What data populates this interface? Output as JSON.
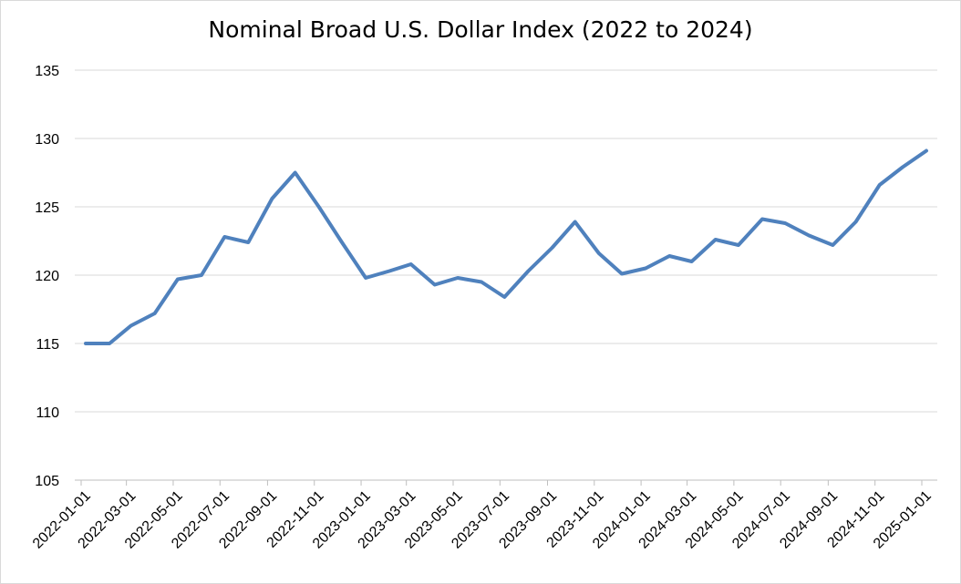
{
  "chart_data": {
    "type": "line",
    "title": "Nominal Broad U.S. Dollar Index (2022 to 2024)",
    "xlabel": "",
    "ylabel": "",
    "ylim": [
      105,
      135
    ],
    "yticks": [
      "105",
      "110",
      "115",
      "120",
      "125",
      "130",
      "135"
    ],
    "xticks": [
      "2022-01-01",
      "2022-03-01",
      "2022-05-01",
      "2022-07-01",
      "2022-09-01",
      "2022-11-01",
      "2023-01-01",
      "2023-03-01",
      "2023-05-01",
      "2023-07-01",
      "2023-09-01",
      "2023-11-01",
      "2024-01-01",
      "2024-03-01",
      "2024-05-01",
      "2024-07-01",
      "2024-09-01",
      "2024-11-01",
      "2025-01-01"
    ],
    "grid": true,
    "line_color": "#4f81bd",
    "series": [
      {
        "x": [
          "2022-01-01",
          "2022-02-01",
          "2022-03-01",
          "2022-04-01",
          "2022-05-01",
          "2022-06-01",
          "2022-07-01",
          "2022-08-01",
          "2022-09-01",
          "2022-10-01",
          "2022-11-01",
          "2022-12-01",
          "2023-01-01",
          "2023-02-01",
          "2023-03-01",
          "2023-04-01",
          "2023-05-01",
          "2023-06-01",
          "2023-07-01",
          "2023-08-01",
          "2023-09-01",
          "2023-10-01",
          "2023-11-01",
          "2023-12-01",
          "2024-01-01",
          "2024-02-01",
          "2024-03-01",
          "2024-04-01",
          "2024-05-01",
          "2024-06-01",
          "2024-07-01",
          "2024-08-01",
          "2024-09-01",
          "2024-10-01",
          "2024-11-01",
          "2024-12-01",
          "2025-01-01"
        ],
        "values": [
          115.0,
          115.0,
          116.3,
          117.2,
          119.7,
          120.0,
          122.8,
          122.4,
          125.6,
          127.5,
          125.0,
          122.4,
          119.8,
          120.3,
          120.8,
          119.3,
          119.8,
          119.5,
          118.4,
          120.3,
          122.0,
          123.9,
          121.6,
          120.1,
          120.5,
          121.4,
          121.0,
          122.6,
          122.2,
          124.1,
          123.8,
          122.9,
          122.2,
          123.9,
          126.6,
          127.9,
          129.1
        ]
      }
    ]
  }
}
